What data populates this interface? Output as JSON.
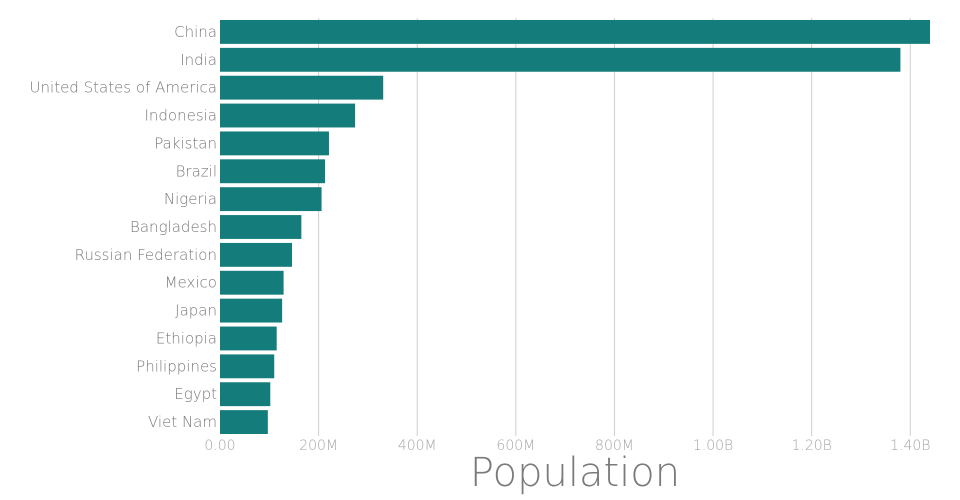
{
  "chart_data": {
    "type": "bar",
    "orientation": "horizontal",
    "categories": [
      "China",
      "India",
      "United States of America",
      "Indonesia",
      "Pakistan",
      "Brazil",
      "Nigeria",
      "Bangladesh",
      "Russian Federation",
      "Mexico",
      "Japan",
      "Ethiopia",
      "Philippines",
      "Egypt",
      "Viet Nam"
    ],
    "values": [
      1440000000,
      1380000000,
      331000000,
      274000000,
      221000000,
      213000000,
      206000000,
      165000000,
      146000000,
      129000000,
      126000000,
      115000000,
      110000000,
      102000000,
      97000000
    ],
    "xlabel": "Population",
    "ylabel": "",
    "xlim": [
      0,
      1440000000
    ],
    "xticks": [
      0,
      200000000,
      400000000,
      600000000,
      800000000,
      1000000000,
      1200000000,
      1400000000
    ],
    "xtick_labels": [
      "0.00",
      "200M",
      "400M",
      "600M",
      "800M",
      "1.00B",
      "1.20B",
      "1.40B"
    ],
    "grid": true,
    "bar_color": "#147d7b"
  }
}
